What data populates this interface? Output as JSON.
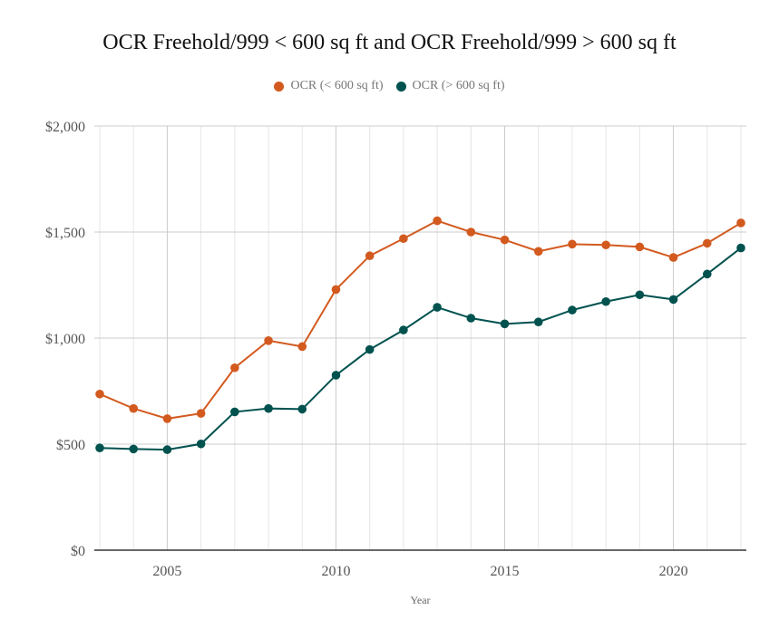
{
  "chart_data": {
    "type": "line",
    "title": "OCR Freehold/999 < 600 sq ft and OCR Freehold/999 > 600 sq ft",
    "xlabel": "Year",
    "ylabel": "",
    "x": [
      2003,
      2004,
      2005,
      2006,
      2007,
      2008,
      2009,
      2010,
      2011,
      2012,
      2013,
      2014,
      2015,
      2016,
      2017,
      2018,
      2019,
      2020,
      2021,
      2022
    ],
    "series": [
      {
        "name": "OCR (< 600 sq ft)",
        "color": "#D35A1F",
        "values": [
          736,
          668,
          620,
          645,
          860,
          988,
          960,
          1229,
          1388,
          1469,
          1553,
          1500,
          1463,
          1409,
          1443,
          1439,
          1430,
          1380,
          1447,
          1543
        ]
      },
      {
        "name": "OCR (> 600 sq ft)",
        "color": "#00524F",
        "values": [
          482,
          477,
          474,
          501,
          652,
          668,
          665,
          825,
          946,
          1038,
          1145,
          1094,
          1067,
          1076,
          1132,
          1172,
          1204,
          1182,
          1302,
          1425
        ]
      }
    ],
    "ylim": [
      0,
      2000
    ],
    "xlim": [
      2003,
      2022
    ],
    "yticks": [
      0,
      500,
      1000,
      1500,
      2000
    ],
    "ytick_labels": [
      "$0",
      "$500",
      "$1,000",
      "$1,500",
      "$2,000"
    ],
    "xticks": [
      2005,
      2010,
      2015,
      2020
    ],
    "xtick_labels": [
      "2005",
      "2010",
      "2015",
      "2020"
    ],
    "grid": true,
    "legend_position": "top-center"
  }
}
